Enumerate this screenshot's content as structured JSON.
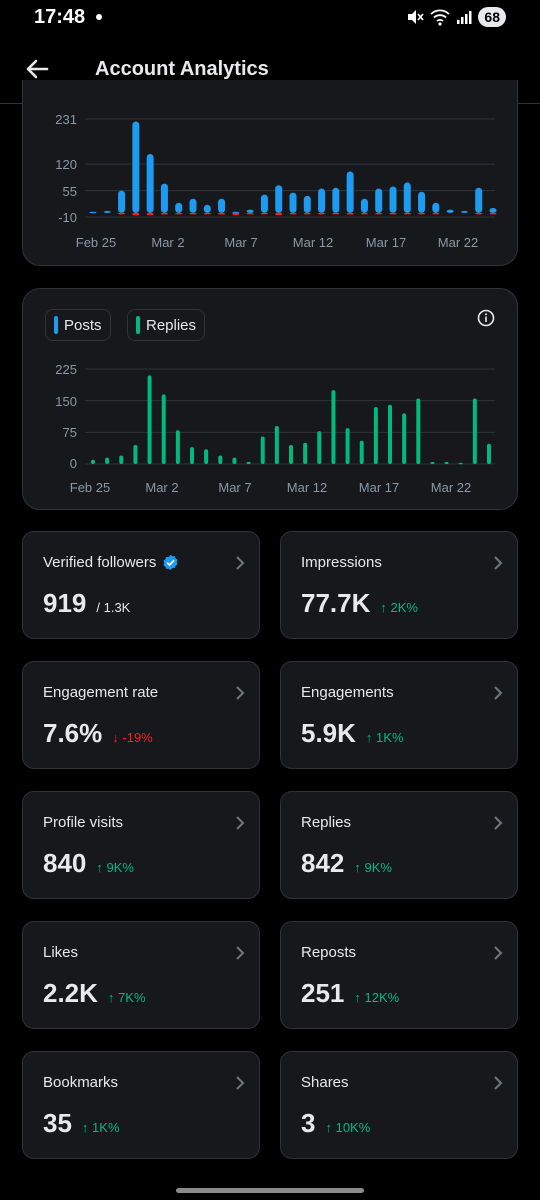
{
  "status": {
    "time": "17:48",
    "battery": "68"
  },
  "header": {
    "title": "Account Analytics"
  },
  "chart1": {
    "type": "bar",
    "yticks": [
      "231",
      "120",
      "55",
      "-10"
    ],
    "xticks": [
      "Feb 25",
      "Mar 2",
      "Mar 7",
      "Mar 12",
      "Mar 17",
      "Mar 22"
    ],
    "ylim": [
      -10,
      231
    ],
    "colors": {
      "positive": "#1d9bf0",
      "negative": "#f4212e"
    }
  },
  "chart2": {
    "type": "bar",
    "legend": [
      {
        "label": "Posts",
        "color": "#1d9bf0"
      },
      {
        "label": "Replies",
        "color": "#00ba7c"
      }
    ],
    "yticks": [
      "225",
      "150",
      "75",
      "0"
    ],
    "xticks": [
      "Feb 25",
      "Mar 2",
      "Mar 7",
      "Mar 12",
      "Mar 17",
      "Mar 22"
    ],
    "ylim": [
      0,
      225
    ]
  },
  "chart_data": [
    {
      "type": "bar",
      "title": "",
      "ylim": [
        -10,
        231
      ],
      "x_start": "Feb 24",
      "series": [
        {
          "values": [
            3,
            5,
            55,
            225,
            145,
            72,
            25,
            35,
            20,
            35,
            3,
            8,
            45,
            68,
            50,
            42,
            60,
            62,
            102,
            35,
            60,
            65,
            75,
            52,
            25,
            8,
            5,
            62,
            12
          ]
        },
        {
          "values": [
            0,
            0,
            -3,
            -6,
            -5,
            -4,
            -2,
            -2,
            -1,
            -4,
            -5,
            -1,
            -2,
            -5,
            -3,
            -2,
            -3,
            -3,
            -4,
            -2,
            -2,
            -3,
            -2,
            -2,
            -1,
            0,
            0,
            -2,
            -1
          ]
        }
      ]
    },
    {
      "type": "bar",
      "title": "",
      "ylim": [
        0,
        225
      ],
      "x_start": "Feb 24",
      "series": [
        {
          "name": "Posts",
          "values": [
            0,
            0,
            0,
            0,
            0,
            0,
            0,
            0,
            0,
            0,
            0,
            0,
            0,
            0,
            0,
            0,
            0,
            0,
            0,
            0,
            0,
            0,
            0,
            0,
            0,
            0,
            0,
            0,
            0
          ]
        },
        {
          "name": "Replies",
          "values": [
            10,
            15,
            20,
            45,
            210,
            165,
            80,
            40,
            35,
            20,
            15,
            5,
            65,
            90,
            45,
            50,
            78,
            175,
            85,
            55,
            135,
            140,
            120,
            155,
            5,
            5,
            3,
            155,
            48
          ]
        }
      ]
    }
  ],
  "stats": [
    {
      "label": "Verified followers",
      "value": "919",
      "subtotal": "/ 1.3K",
      "delta": "",
      "direction": ""
    },
    {
      "label": "Impressions",
      "value": "77.7K",
      "subtotal": "",
      "delta": "2K%",
      "direction": "up"
    },
    {
      "label": "Engagement rate",
      "value": "7.6%",
      "subtotal": "",
      "delta": "-19%",
      "direction": "down"
    },
    {
      "label": "Engagements",
      "value": "5.9K",
      "subtotal": "",
      "delta": "1K%",
      "direction": "up"
    },
    {
      "label": "Profile visits",
      "value": "840",
      "subtotal": "",
      "delta": "9K%",
      "direction": "up"
    },
    {
      "label": "Replies",
      "value": "842",
      "subtotal": "",
      "delta": "9K%",
      "direction": "up"
    },
    {
      "label": "Likes",
      "value": "2.2K",
      "subtotal": "",
      "delta": "7K%",
      "direction": "up"
    },
    {
      "label": "Reposts",
      "value": "251",
      "subtotal": "",
      "delta": "12K%",
      "direction": "up"
    },
    {
      "label": "Bookmarks",
      "value": "35",
      "subtotal": "",
      "delta": "1K%",
      "direction": "up"
    },
    {
      "label": "Shares",
      "value": "3",
      "subtotal": "",
      "delta": "10K%",
      "direction": "up"
    }
  ],
  "icons": {
    "back": "arrow-left-icon",
    "verified": "verified-badge-icon",
    "info": "info-icon",
    "chevron": "chevron-right-icon"
  }
}
